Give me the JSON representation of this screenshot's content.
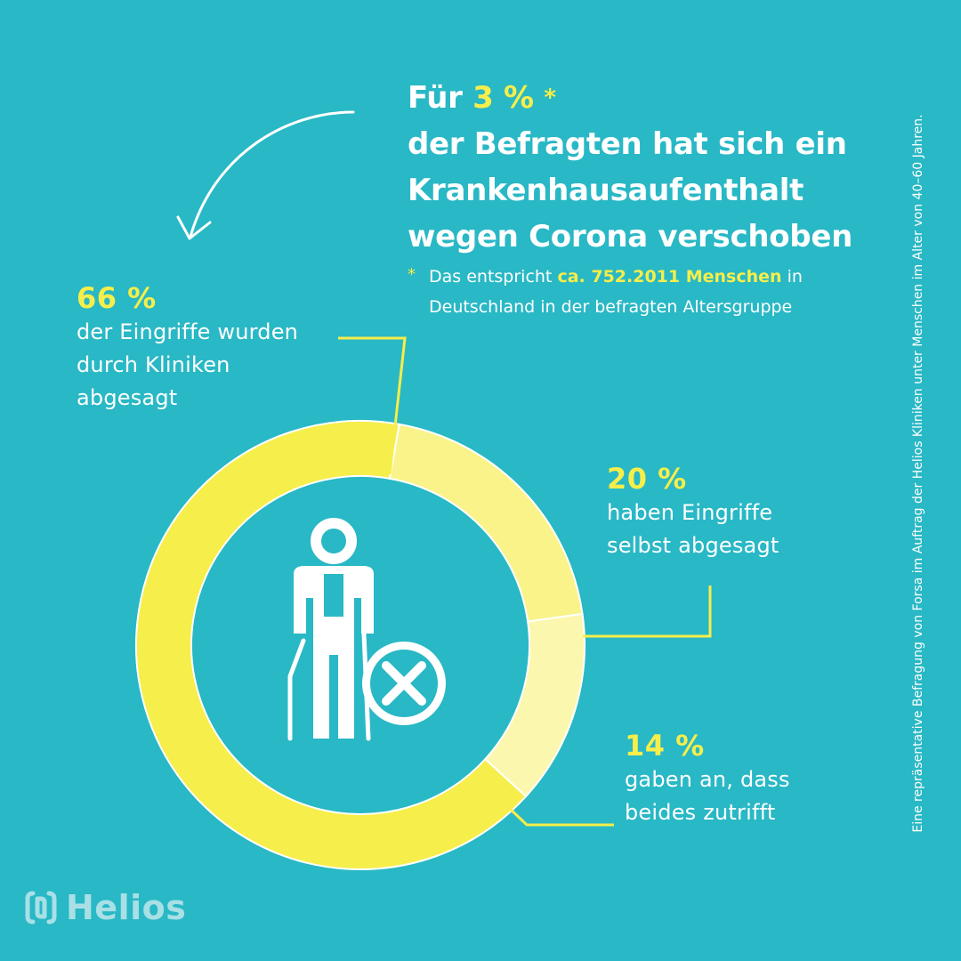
{
  "headline": {
    "prefix": "Für",
    "percent": "3 %",
    "asterisk": "*",
    "line2": "der Befragten hat sich ein",
    "line3": "Krankenhausaufenthalt",
    "line4": "wegen Corona verschoben"
  },
  "footnote": {
    "asterisk": "*",
    "text_before": "Das entspricht",
    "highlight": "ca. 752.2011 Menschen",
    "text_after": "in",
    "line2": "Deutschland in der befragten Altersgruppe"
  },
  "source_note": "Eine repräsentative Befragung von Forsa im Auftrag der Helios Kliniken unter Menschen im Alter von 40–60 Jahren.",
  "logo": {
    "text": "Helios",
    "icon": "helios-logo-icon"
  },
  "icons": {
    "center": "elderly-person-with-cane-icon",
    "badge": "cancel-x-icon"
  },
  "colors": {
    "background": "#29B8C5",
    "accent_yellow": "#F6EE4A",
    "ring_main": "#F6EE4A",
    "ring_light": "#FAF38A",
    "ring_lighter": "#FCF7AE",
    "white": "#FFFFFF",
    "logo": "#A8E0E6"
  },
  "chart_data": {
    "type": "pie",
    "variant": "donut",
    "slices": [
      {
        "percent_label": "66 %",
        "value": 66,
        "description": [
          "der Eingriffe wurden",
          "durch Kliniken",
          "abgesagt"
        ],
        "color": "#F6EE4A"
      },
      {
        "percent_label": "20 %",
        "value": 20,
        "description": [
          "haben Eingriffe",
          "selbst abgesagt"
        ],
        "color": "#FAF38A"
      },
      {
        "percent_label": "14 %",
        "value": 14,
        "description": [
          "gaben an, dass",
          "beides zutrifft"
        ],
        "color": "#FCF7AE"
      }
    ]
  }
}
